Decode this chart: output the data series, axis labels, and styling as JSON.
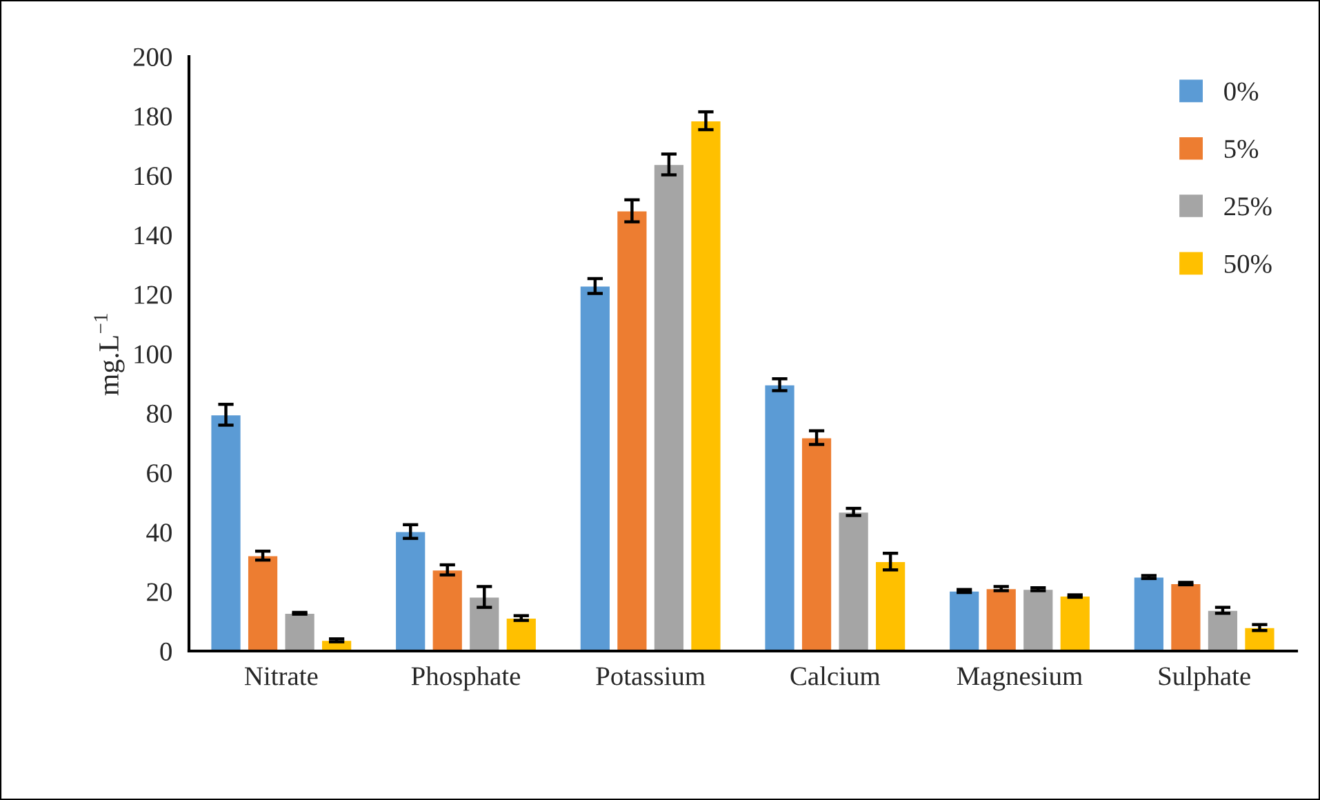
{
  "chart_data": {
    "type": "bar",
    "ylabel": "mg.L$^{−1}$",
    "categories": [
      "Nitrate",
      "Phosphate",
      "Potassium",
      "Calcium",
      "Magnesium",
      "Sulphate"
    ],
    "series": [
      {
        "name": "0%",
        "color": "#5b9bd5",
        "values": [
          79.5,
          40.2,
          122.8,
          89.6,
          20.2,
          24.9
        ],
        "errors": [
          3.5,
          2.3,
          2.5,
          2,
          0.5,
          0.5
        ]
      },
      {
        "name": "5%",
        "color": "#ed7d31",
        "values": [
          32.1,
          27.3,
          148.1,
          71.8,
          21.0,
          22.7
        ],
        "errors": [
          1.5,
          1.7,
          3.7,
          2.3,
          0.7,
          0.4
        ]
      },
      {
        "name": "25%",
        "color": "#a5a5a5",
        "values": [
          12.7,
          18.2,
          163.7,
          46.8,
          20.8,
          13.7
        ],
        "errors": [
          0.3,
          3.5,
          3.5,
          1.2,
          0.5,
          1
        ]
      },
      {
        "name": "50%",
        "color": "#ffc000",
        "values": [
          3.6,
          11.1,
          178.4,
          30.1,
          18.5,
          7.9
        ],
        "errors": [
          0.5,
          0.8,
          3,
          2.8,
          0.4,
          1
        ]
      }
    ],
    "ylim": [
      0,
      200
    ],
    "yticks": [
      0,
      20,
      40,
      60,
      80,
      100,
      120,
      140,
      160,
      180,
      200
    ],
    "grid": false,
    "legend": "top right"
  }
}
